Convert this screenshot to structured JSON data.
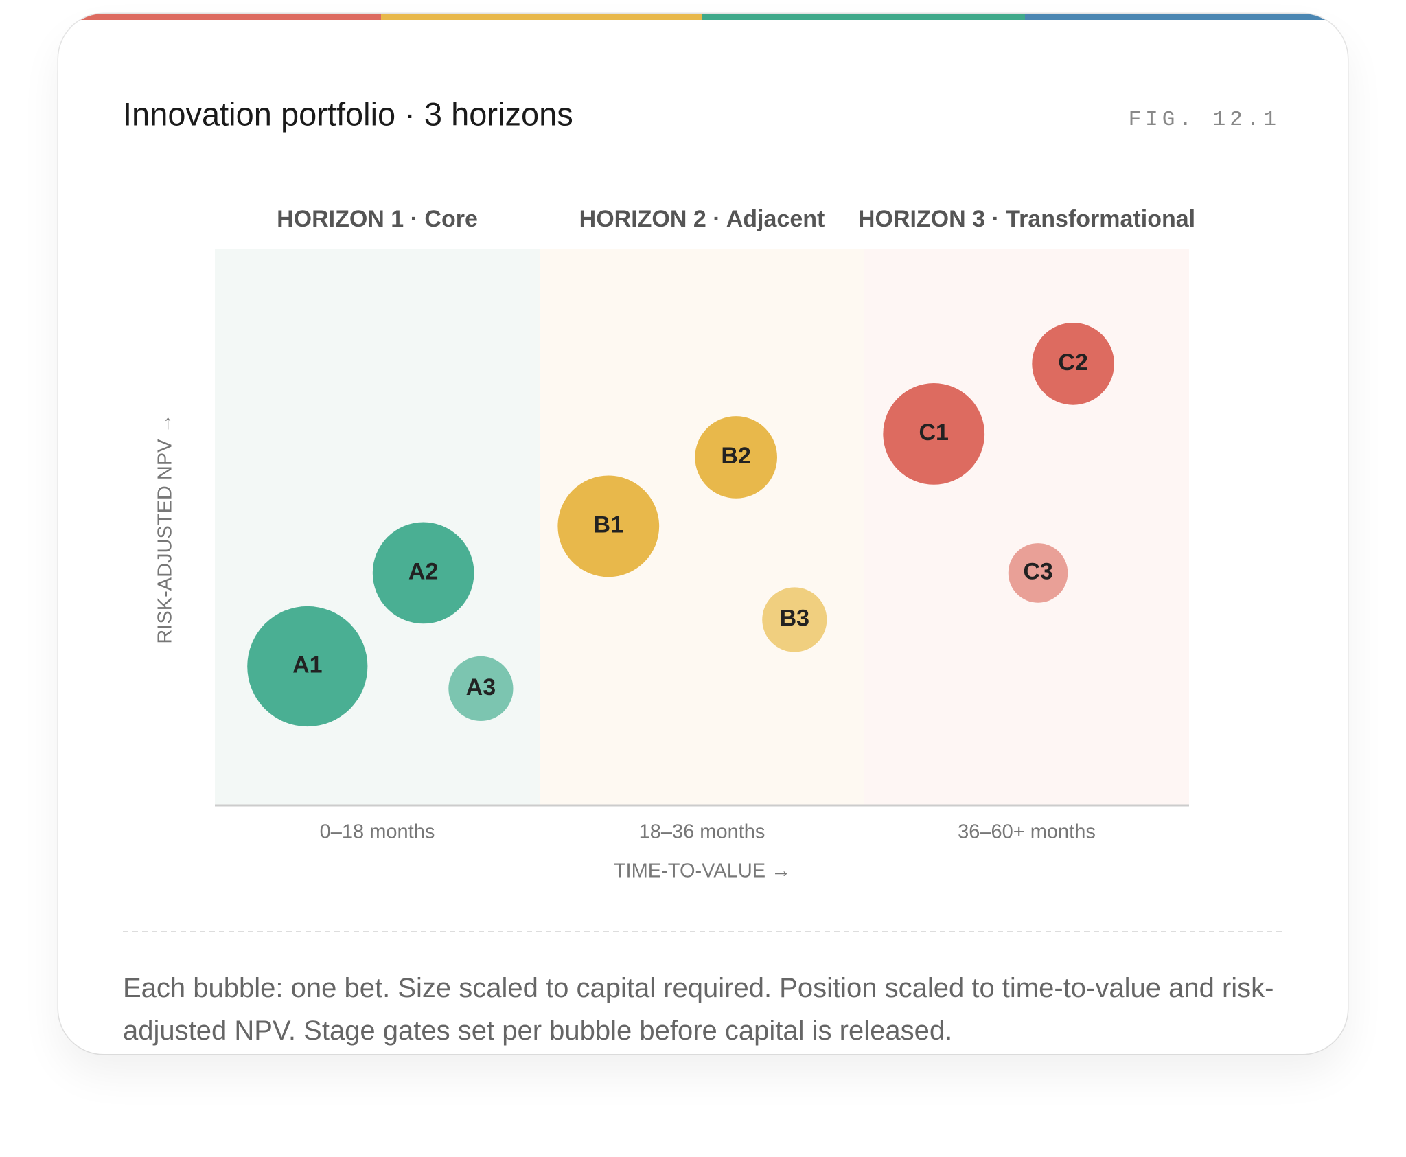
{
  "chart_data": {
    "type": "bubble",
    "title": "Innovation portfolio · 3 horizons",
    "figure_label": "FIG. 12.1",
    "xlabel": "TIME-TO-VALUE →",
    "ylabel": "RISK-ADJUSTED NPV →",
    "xlim": [
      0,
      100
    ],
    "ylim": [
      0,
      100
    ],
    "bands": [
      {
        "label": "HORIZON 1 · Core",
        "category": "0–18 months",
        "color": "#f3f8f6"
      },
      {
        "label": "HORIZON 2 · Adjacent",
        "category": "18–36 months",
        "color": "#fef9f2"
      },
      {
        "label": "HORIZON 3 · Transformational",
        "category": "36–60+ months",
        "color": "#fef6f4"
      }
    ],
    "points": [
      {
        "label": "A1",
        "x": 9.5,
        "y": 25,
        "size": 45,
        "color": "#4aaf93"
      },
      {
        "label": "A2",
        "x": 21.4,
        "y": 41.8,
        "size": 32,
        "color": "#4aaf93"
      },
      {
        "label": "A3",
        "x": 27.3,
        "y": 21,
        "size": 13,
        "color": "#7cc5b0"
      },
      {
        "label": "B1",
        "x": 40.4,
        "y": 50.2,
        "size": 32,
        "color": "#e8b84b"
      },
      {
        "label": "B2",
        "x": 53.5,
        "y": 62.6,
        "size": 21,
        "color": "#e8b84b"
      },
      {
        "label": "B3",
        "x": 59.5,
        "y": 33.4,
        "size": 13,
        "color": "#f0cf7f"
      },
      {
        "label": "C1",
        "x": 73.8,
        "y": 66.8,
        "size": 32,
        "color": "#dd6b60"
      },
      {
        "label": "C2",
        "x": 88.1,
        "y": 79.4,
        "size": 21,
        "color": "#dd6b60"
      },
      {
        "label": "C3",
        "x": 84.5,
        "y": 41.8,
        "size": 11,
        "color": "#e9a097"
      }
    ]
  },
  "caption": "Each bubble: one bet. Size scaled to capital required. Position scaled to time-to-value and risk-adjusted NPV. Stage gates set per bubble before capital is released."
}
